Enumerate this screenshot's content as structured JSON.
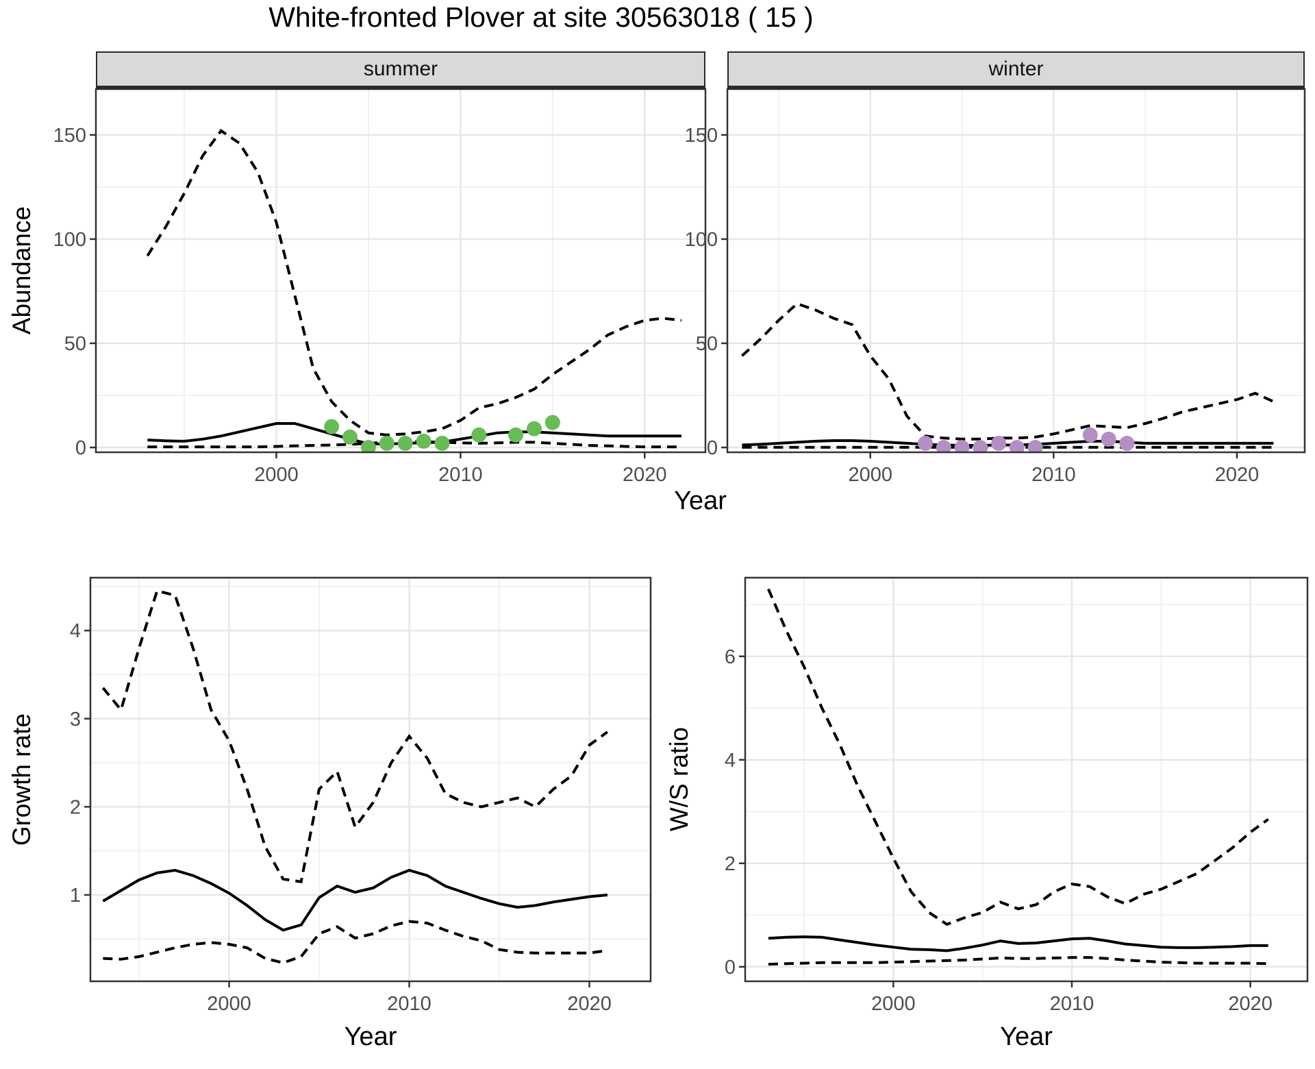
{
  "title": "White-fronted Plover at site 30563018 ( 15 )",
  "facets": {
    "summer": "summer",
    "winter": "winter"
  },
  "axes": {
    "abundance_label": "Abundance",
    "year_label": "Year",
    "growth_label": "Growth rate",
    "ws_label": "W/S ratio"
  },
  "colors": {
    "summer_points": "#66BD55",
    "winter_points": "#B48EC5",
    "line": "#000000",
    "grid_major": "#e6e6e6",
    "grid_minor": "#f0f0f0",
    "panel_border": "#333333",
    "strip_fill": "#d9d9d9",
    "tick_text": "#4d4d4d"
  },
  "chart_data": [
    {
      "id": "abundance_summer",
      "type": "line",
      "facet": "summer",
      "xlabel": "Year",
      "ylabel": "Abundance",
      "xlim": [
        1990.2,
        2023.3
      ],
      "ylim": [
        -2.3,
        172
      ],
      "x_ticks": [
        2000,
        2010,
        2020
      ],
      "x_minor": [
        1995,
        2005,
        2015
      ],
      "y_ticks": [
        0,
        50,
        100,
        150
      ],
      "y_minor": [
        25,
        75,
        125
      ],
      "grid": true,
      "series": [
        {
          "name": "median",
          "style": "solid",
          "x": [
            1993,
            1994,
            1995,
            1996,
            1997,
            1998,
            1999,
            2000,
            2001,
            2002,
            2003,
            2004,
            2005,
            2006,
            2007,
            2008,
            2009,
            2010,
            2011,
            2012,
            2013,
            2014,
            2015,
            2016,
            2017,
            2018,
            2019,
            2020,
            2021,
            2022
          ],
          "y": [
            3.6,
            3.2,
            3,
            4,
            5.5,
            7.5,
            9.5,
            11.5,
            11.5,
            9,
            6.5,
            4,
            1.8,
            1.6,
            2,
            2.2,
            2.6,
            4,
            5.5,
            7,
            7.5,
            7.5,
            7,
            6.5,
            6,
            5.5,
            5.5,
            5.5,
            5.5,
            5.5
          ]
        },
        {
          "name": "upper_ci",
          "style": "dashed",
          "x": [
            1993,
            1994,
            1995,
            1996,
            1997,
            1998,
            1999,
            2000,
            2001,
            2002,
            2003,
            2004,
            2005,
            2006,
            2007,
            2008,
            2009,
            2010,
            2011,
            2012,
            2013,
            2014,
            2015,
            2016,
            2017,
            2018,
            2019,
            2020,
            2021,
            2022
          ],
          "y": [
            92,
            106,
            122,
            140,
            152,
            146,
            132,
            108,
            73,
            38,
            22,
            13,
            7,
            6,
            6.5,
            7.5,
            9,
            13,
            19,
            21,
            24,
            28,
            35,
            41,
            47,
            54,
            58,
            61,
            62,
            61
          ]
        },
        {
          "name": "lower_ci",
          "style": "dashed",
          "x": [
            1993,
            1994,
            1995,
            1996,
            1997,
            1998,
            1999,
            2000,
            2001,
            2002,
            2003,
            2004,
            2005,
            2006,
            2007,
            2008,
            2009,
            2010,
            2011,
            2012,
            2013,
            2014,
            2015,
            2016,
            2017,
            2018,
            2019,
            2020,
            2021,
            2022
          ],
          "y": [
            0.3,
            0.3,
            0.3,
            0.3,
            0.3,
            0.3,
            0.3,
            0.5,
            0.8,
            1,
            1.2,
            1.5,
            2,
            2.5,
            2.8,
            2.8,
            2.5,
            2.2,
            2,
            2.2,
            2.5,
            2.5,
            2,
            1.5,
            1,
            0.8,
            0.5,
            0.3,
            0.3,
            0.3
          ]
        },
        {
          "name": "observed_counts",
          "style": "points",
          "color": "#66BD55",
          "x": [
            2003,
            2004,
            2005,
            2006,
            2007,
            2008,
            2009,
            2011,
            2013,
            2014,
            2015
          ],
          "y": [
            10,
            5,
            0,
            2,
            2,
            3,
            2,
            6,
            6,
            9,
            12
          ]
        }
      ]
    },
    {
      "id": "abundance_winter",
      "type": "line",
      "facet": "winter",
      "xlabel": "Year",
      "ylabel": "Abundance",
      "xlim": [
        1992.2,
        2023.7
      ],
      "ylim": [
        -2.3,
        172
      ],
      "x_ticks": [
        2000,
        2010,
        2020
      ],
      "x_minor": [
        1995,
        2005,
        2015
      ],
      "y_ticks": [
        0,
        50,
        100,
        150
      ],
      "y_minor": [
        25,
        75,
        125
      ],
      "grid": true,
      "series": [
        {
          "name": "median",
          "style": "solid",
          "x": [
            1993,
            1994,
            1995,
            1996,
            1997,
            1998,
            1999,
            2000,
            2001,
            2002,
            2003,
            2004,
            2005,
            2006,
            2007,
            2008,
            2009,
            2010,
            2011,
            2012,
            2013,
            2014,
            2015,
            2016,
            2017,
            2018,
            2019,
            2020,
            2021,
            2022
          ],
          "y": [
            1.2,
            1.5,
            2,
            2.5,
            3,
            3.3,
            3.3,
            3,
            2.5,
            2,
            1.5,
            1.2,
            1,
            1,
            1.2,
            1.2,
            1.5,
            2,
            2.5,
            3,
            3,
            2.5,
            2,
            2,
            2,
            2,
            2,
            2,
            2,
            2
          ]
        },
        {
          "name": "upper_ci",
          "style": "dashed",
          "x": [
            1993,
            1994,
            1995,
            1996,
            1997,
            1998,
            1999,
            2000,
            2001,
            2002,
            2003,
            2004,
            2005,
            2006,
            2007,
            2008,
            2009,
            2010,
            2011,
            2012,
            2013,
            2014,
            2015,
            2016,
            2017,
            2018,
            2019,
            2020,
            2021,
            2022
          ],
          "y": [
            44,
            52,
            61,
            69,
            66,
            62,
            59,
            44,
            33,
            15,
            5.5,
            4.5,
            4,
            4,
            4.5,
            4.5,
            5,
            6.5,
            8.5,
            10.5,
            10,
            9.5,
            11.5,
            14,
            17,
            19,
            21,
            23,
            26,
            22
          ]
        },
        {
          "name": "lower_ci",
          "style": "dashed",
          "x": [
            1993,
            1994,
            1995,
            1996,
            1997,
            1998,
            1999,
            2000,
            2001,
            2002,
            2003,
            2004,
            2005,
            2006,
            2007,
            2008,
            2009,
            2010,
            2011,
            2012,
            2013,
            2014,
            2015,
            2016,
            2017,
            2018,
            2019,
            2020,
            2021,
            2022
          ],
          "y": [
            0.1,
            0.1,
            0.1,
            0.1,
            0.1,
            0.1,
            0.1,
            0.1,
            0.1,
            0.1,
            0.1,
            0.1,
            0.1,
            0.1,
            0.1,
            0.1,
            0.1,
            0.1,
            0.1,
            0.1,
            0.1,
            0.1,
            0.1,
            0.1,
            0.1,
            0.1,
            0.1,
            0.1,
            0.1,
            0.1
          ]
        },
        {
          "name": "observed_counts",
          "style": "points",
          "color": "#B48EC5",
          "x": [
            2003,
            2004,
            2005,
            2006,
            2007,
            2008,
            2009,
            2012,
            2013,
            2014
          ],
          "y": [
            2,
            0,
            0,
            0,
            2,
            0,
            0,
            6,
            4,
            2
          ]
        }
      ]
    },
    {
      "id": "growth_rate",
      "type": "line",
      "facet": null,
      "xlabel": "Year",
      "ylabel": "Growth rate",
      "xlim": [
        1992.3,
        2023.4
      ],
      "ylim": [
        0.02,
        4.6
      ],
      "x_ticks": [
        2000,
        2010,
        2020
      ],
      "x_minor": [
        1995,
        2005,
        2015
      ],
      "y_ticks": [
        1,
        2,
        3,
        4
      ],
      "y_minor": [
        0.5,
        1.5,
        2.5,
        3.5,
        4.5
      ],
      "grid": true,
      "series": [
        {
          "name": "median",
          "style": "solid",
          "x": [
            1993,
            1994,
            1995,
            1996,
            1997,
            1998,
            1999,
            2000,
            2001,
            2002,
            2003,
            2004,
            2005,
            2006,
            2007,
            2008,
            2009,
            2010,
            2011,
            2012,
            2013,
            2014,
            2015,
            2016,
            2017,
            2018,
            2019,
            2020,
            2021
          ],
          "y": [
            0.93,
            1.05,
            1.17,
            1.25,
            1.28,
            1.22,
            1.13,
            1.02,
            0.88,
            0.72,
            0.6,
            0.66,
            0.97,
            1.1,
            1.03,
            1.08,
            1.2,
            1.28,
            1.22,
            1.1,
            1.03,
            0.96,
            0.9,
            0.86,
            0.88,
            0.92,
            0.95,
            0.98,
            1.0
          ]
        },
        {
          "name": "upper_ci",
          "style": "dashed",
          "x": [
            1993,
            1994,
            1995,
            1996,
            1997,
            1998,
            1999,
            2000,
            2001,
            2002,
            2003,
            2004,
            2005,
            2006,
            2007,
            2008,
            2009,
            2010,
            2011,
            2012,
            2013,
            2014,
            2015,
            2016,
            2017,
            2018,
            2019,
            2020,
            2021
          ],
          "y": [
            3.35,
            3.1,
            3.8,
            4.45,
            4.4,
            3.8,
            3.1,
            2.75,
            2.2,
            1.55,
            1.18,
            1.15,
            2.2,
            2.4,
            1.77,
            2.05,
            2.5,
            2.8,
            2.55,
            2.15,
            2.05,
            2.0,
            2.05,
            2.1,
            2.0,
            2.2,
            2.35,
            2.7,
            2.85
          ]
        },
        {
          "name": "lower_ci",
          "style": "dashed",
          "x": [
            1993,
            1994,
            1995,
            1996,
            1997,
            1998,
            1999,
            2000,
            2001,
            2002,
            2003,
            2004,
            2005,
            2006,
            2007,
            2008,
            2009,
            2010,
            2011,
            2012,
            2013,
            2014,
            2015,
            2016,
            2017,
            2018,
            2019,
            2020,
            2021
          ],
          "y": [
            0.28,
            0.27,
            0.3,
            0.35,
            0.4,
            0.44,
            0.46,
            0.44,
            0.4,
            0.28,
            0.23,
            0.3,
            0.56,
            0.64,
            0.51,
            0.56,
            0.65,
            0.7,
            0.68,
            0.6,
            0.53,
            0.48,
            0.38,
            0.35,
            0.34,
            0.34,
            0.34,
            0.34,
            0.37
          ]
        }
      ]
    },
    {
      "id": "ws_ratio",
      "type": "line",
      "facet": null,
      "xlabel": "Year",
      "ylabel": "W/S ratio",
      "xlim": [
        1991.7,
        2023.2
      ],
      "ylim": [
        -0.28,
        7.52
      ],
      "x_ticks": [
        2000,
        2010,
        2020
      ],
      "x_minor": [
        1995,
        2005,
        2015
      ],
      "y_ticks": [
        0,
        2,
        4,
        6
      ],
      "y_minor": [
        1,
        3,
        5,
        7
      ],
      "grid": true,
      "series": [
        {
          "name": "median",
          "style": "solid",
          "x": [
            1993,
            1994,
            1995,
            1996,
            1997,
            1998,
            1999,
            2000,
            2001,
            2002,
            2003,
            2004,
            2005,
            2006,
            2007,
            2008,
            2009,
            2010,
            2011,
            2012,
            2013,
            2014,
            2015,
            2016,
            2017,
            2018,
            2019,
            2020,
            2021
          ],
          "y": [
            0.55,
            0.57,
            0.58,
            0.57,
            0.52,
            0.47,
            0.42,
            0.38,
            0.34,
            0.33,
            0.31,
            0.36,
            0.42,
            0.5,
            0.45,
            0.46,
            0.5,
            0.54,
            0.55,
            0.5,
            0.44,
            0.41,
            0.38,
            0.37,
            0.37,
            0.38,
            0.39,
            0.41,
            0.41
          ]
        },
        {
          "name": "upper_ci",
          "style": "dashed",
          "x": [
            1993,
            1994,
            1995,
            1996,
            1997,
            1998,
            1999,
            2000,
            2001,
            2002,
            2003,
            2004,
            2005,
            2006,
            2007,
            2008,
            2009,
            2010,
            2011,
            2012,
            2013,
            2014,
            2015,
            2016,
            2017,
            2018,
            2019,
            2020,
            2021
          ],
          "y": [
            7.3,
            6.5,
            5.8,
            5.0,
            4.3,
            3.5,
            2.8,
            2.1,
            1.45,
            1.05,
            0.82,
            0.95,
            1.05,
            1.25,
            1.12,
            1.2,
            1.45,
            1.6,
            1.55,
            1.35,
            1.22,
            1.4,
            1.5,
            1.65,
            1.8,
            2.05,
            2.3,
            2.6,
            2.85
          ]
        },
        {
          "name": "lower_ci",
          "style": "dashed",
          "x": [
            1993,
            1994,
            1995,
            1996,
            1997,
            1998,
            1999,
            2000,
            2001,
            2002,
            2003,
            2004,
            2005,
            2006,
            2007,
            2008,
            2009,
            2010,
            2011,
            2012,
            2013,
            2014,
            2015,
            2016,
            2017,
            2018,
            2019,
            2020,
            2021
          ],
          "y": [
            0.05,
            0.06,
            0.07,
            0.08,
            0.08,
            0.08,
            0.08,
            0.09,
            0.1,
            0.11,
            0.12,
            0.13,
            0.15,
            0.17,
            0.16,
            0.16,
            0.17,
            0.18,
            0.18,
            0.16,
            0.13,
            0.11,
            0.09,
            0.08,
            0.07,
            0.07,
            0.07,
            0.07,
            0.06
          ]
        }
      ]
    }
  ]
}
